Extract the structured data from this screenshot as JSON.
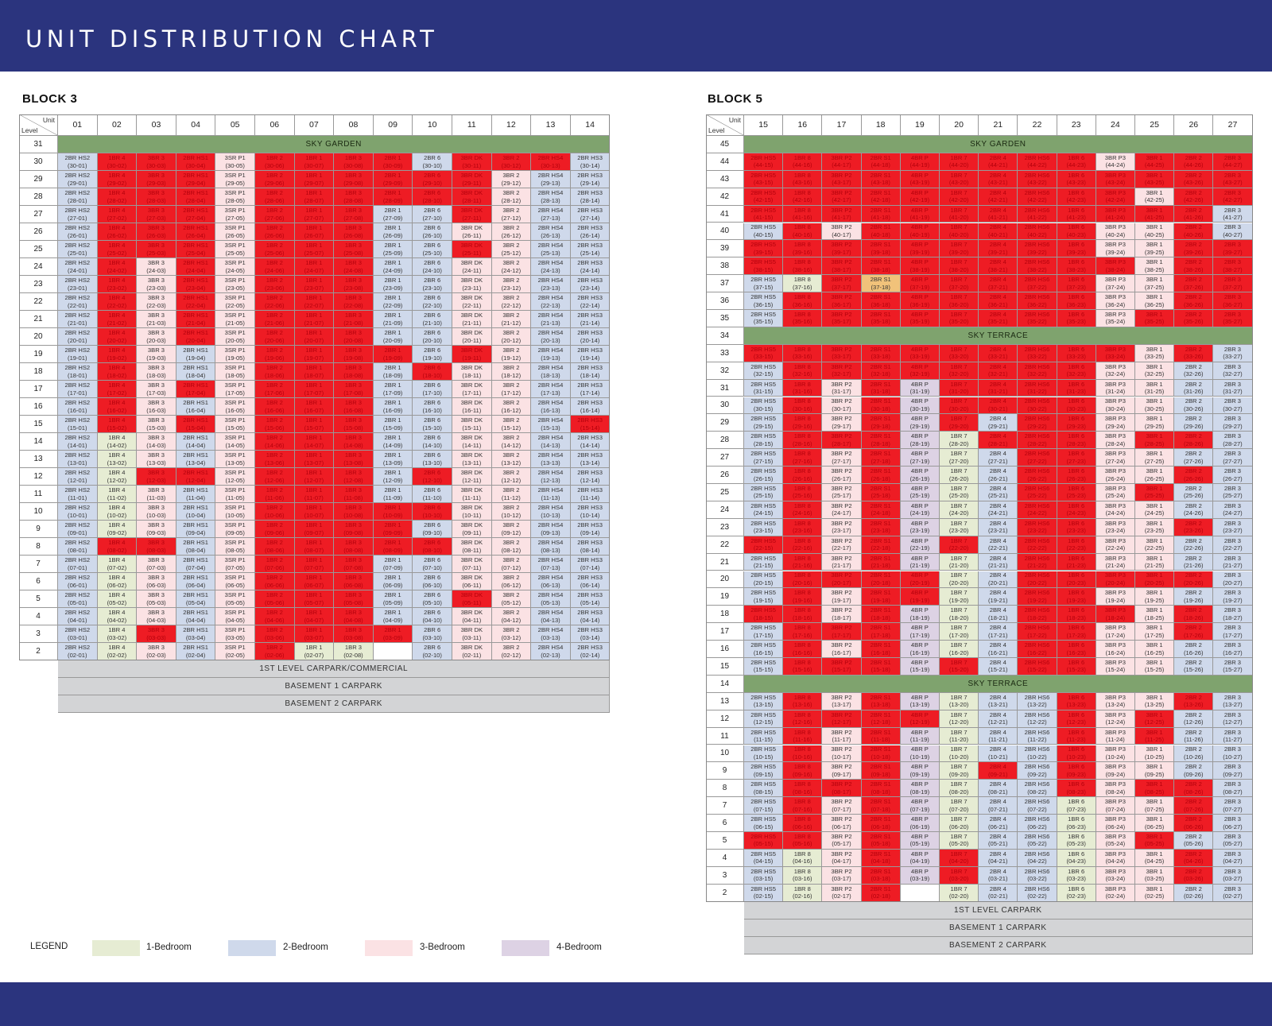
{
  "page": {
    "title": "UNIT DISTRIBUTION CHART"
  },
  "legend": {
    "title": "LEGEND",
    "items": [
      {
        "label": "1-Bedroom",
        "color": "#e6ecd3"
      },
      {
        "label": "2-Bedroom",
        "color": "#cfd9eb"
      },
      {
        "label": "3-Bedroom",
        "color": "#fbe2e4"
      },
      {
        "label": "4-Bedroom",
        "color": "#ddd2e4"
      }
    ]
  },
  "colors": {
    "header_bg": "#2b347e",
    "sold": "#ee1c24",
    "band_green": "#7fa36e",
    "band_gray": "#d3d4d6"
  },
  "block3": {
    "title": "BLOCK 3",
    "corner_unit": "Unit",
    "corner_level": "Level",
    "units": [
      "01",
      "02",
      "03",
      "04",
      "05",
      "06",
      "07",
      "08",
      "09",
      "10",
      "11",
      "12",
      "13",
      "14"
    ],
    "cols": [
      {
        "type": "2BR HS2",
        "cat": 2
      },
      {
        "type": "1BR 4",
        "cat": 1
      },
      {
        "type": "3BR 3",
        "cat": 3
      },
      {
        "type": "2BR HS1",
        "cat": 2
      },
      {
        "type": "3SR P1",
        "cat": 3
      },
      {
        "type": "1BR 2",
        "cat": 1
      },
      {
        "type": "1BR 1",
        "cat": 1
      },
      {
        "type": "1BR 3",
        "cat": 1
      },
      {
        "type": "2BR 1",
        "cat": 2
      },
      {
        "type": "2BR 6",
        "cat": 2
      },
      {
        "type": "3BR DK",
        "cat": 3
      },
      {
        "type": "3BR 2",
        "cat": 3
      },
      {
        "type": "2BR HS4",
        "cat": 2
      },
      {
        "type": "2BR HS3",
        "cat": 2
      }
    ],
    "top_band": {
      "level": "31",
      "label": "SKY GARDEN"
    },
    "levels": [
      {
        "lv": "30",
        "sold": [
          2,
          3,
          4,
          6,
          7,
          8,
          9,
          11,
          12,
          13
        ]
      },
      {
        "lv": "29",
        "sold": [
          2,
          3,
          4,
          6,
          7,
          8,
          9,
          10,
          11
        ]
      },
      {
        "lv": "28",
        "sold": [
          2,
          3,
          4,
          6,
          7,
          8,
          9,
          10,
          11
        ]
      },
      {
        "lv": "27",
        "sold": [
          2,
          3,
          4,
          6,
          7,
          8,
          11
        ]
      },
      {
        "lv": "26",
        "sold": [
          2,
          3,
          4,
          6,
          7,
          8
        ]
      },
      {
        "lv": "25",
        "sold": [
          2,
          3,
          4,
          6,
          7,
          8,
          11
        ]
      },
      {
        "lv": "24",
        "sold": [
          2,
          4,
          6,
          7,
          8
        ]
      },
      {
        "lv": "23",
        "sold": [
          2,
          4,
          6,
          7,
          8
        ]
      },
      {
        "lv": "22",
        "sold": [
          2,
          4,
          6,
          7,
          8
        ]
      },
      {
        "lv": "21",
        "sold": [
          2,
          4,
          6,
          7,
          8
        ]
      },
      {
        "lv": "20",
        "sold": [
          2,
          4,
          6,
          7,
          8
        ]
      },
      {
        "lv": "19",
        "sold": [
          2,
          6,
          7,
          8,
          9,
          11
        ]
      },
      {
        "lv": "18",
        "sold": [
          2,
          6,
          7,
          8,
          10
        ]
      },
      {
        "lv": "17",
        "sold": [
          2,
          4,
          6,
          7,
          8
        ]
      },
      {
        "lv": "16",
        "sold": [
          2,
          6,
          7,
          8
        ]
      },
      {
        "lv": "15",
        "sold": [
          2,
          4,
          6,
          7,
          8,
          14
        ]
      },
      {
        "lv": "14",
        "sold": [
          6,
          7,
          8
        ]
      },
      {
        "lv": "13",
        "sold": [
          6,
          7,
          8
        ]
      },
      {
        "lv": "12",
        "sold": [
          3,
          4,
          6,
          7,
          8,
          10
        ]
      },
      {
        "lv": "11",
        "sold": [
          6,
          7,
          8
        ]
      },
      {
        "lv": "10",
        "sold": [
          6,
          7,
          8,
          9,
          10
        ]
      },
      {
        "lv": "9",
        "sold": [
          6,
          7,
          8,
          9
        ]
      },
      {
        "lv": "8",
        "sold": [
          2,
          3,
          6,
          7,
          8,
          9,
          10
        ]
      },
      {
        "lv": "7",
        "sold": [
          6,
          7,
          8
        ]
      },
      {
        "lv": "6",
        "sold": [
          6,
          7,
          8
        ]
      },
      {
        "lv": "5",
        "sold": [
          6,
          7,
          8,
          11
        ]
      },
      {
        "lv": "4",
        "sold": [
          6,
          7,
          8
        ]
      },
      {
        "lv": "3",
        "sold": [
          3,
          6,
          7,
          8,
          9
        ]
      },
      {
        "lv": "2",
        "sold": [
          6
        ],
        "labels": {
          "7": "1BR 1",
          "8": "1BR 3"
        },
        "blank": [
          9
        ]
      }
    ],
    "bottom_bands": [
      "1ST LEVEL CARPARK/COMMERCIAL",
      "BASEMENT 1 CARPARK",
      "BASEMENT 2 CARPARK"
    ]
  },
  "block5": {
    "title": "BLOCK 5",
    "corner_unit": "Unit",
    "corner_level": "Level",
    "units": [
      "15",
      "16",
      "17",
      "18",
      "19",
      "20",
      "21",
      "22",
      "23",
      "24",
      "25",
      "26",
      "27"
    ],
    "cols": [
      {
        "type": "2BR HS5",
        "cat": 2
      },
      {
        "type": "1BR 8",
        "cat": 1
      },
      {
        "type": "3BR P2",
        "cat": 3
      },
      {
        "type": "2BR S1",
        "cat": 2
      },
      {
        "type": "4BR P",
        "cat": 4
      },
      {
        "type": "1BR 7",
        "cat": 1
      },
      {
        "type": "2BR 4",
        "cat": 2
      },
      {
        "type": "2BR HS6",
        "cat": 2
      },
      {
        "type": "1BR 6",
        "cat": 1
      },
      {
        "type": "3BR P3",
        "cat": 3
      },
      {
        "type": "3BR 1",
        "cat": 3
      },
      {
        "type": "2BR 2",
        "cat": 2
      },
      {
        "type": "2BR 3",
        "cat": 2
      }
    ],
    "top_band": {
      "level": "45",
      "label": "SKY GARDEN"
    },
    "mid_band_1": {
      "level": "34",
      "label": "SKY TERRACE"
    },
    "mid_band_2": {
      "level": "14",
      "label": "SKY TERRACE"
    },
    "upper_levels": [
      {
        "lv": "44",
        "sold": [
          1,
          2,
          3,
          4,
          5,
          6,
          7,
          8,
          9,
          11,
          12,
          13
        ]
      },
      {
        "lv": "43",
        "sold": [
          1,
          2,
          3,
          4,
          5,
          6,
          7,
          8,
          9,
          10,
          11,
          12,
          13
        ]
      },
      {
        "lv": "42",
        "sold": [
          1,
          2,
          3,
          4,
          5,
          6,
          7,
          8,
          9,
          10,
          12,
          13
        ]
      },
      {
        "lv": "41",
        "sold": [
          1,
          2,
          3,
          4,
          5,
          6,
          7,
          8,
          9,
          10,
          11,
          12
        ]
      },
      {
        "lv": "40",
        "sold": [
          2,
          4,
          5,
          6,
          7,
          8,
          9,
          12
        ]
      },
      {
        "lv": "39",
        "sold": [
          1,
          2,
          3,
          4,
          5,
          6,
          7,
          8,
          9,
          12,
          13
        ]
      },
      {
        "lv": "38",
        "sold": [
          1,
          2,
          3,
          4,
          5,
          6,
          7,
          8,
          9,
          10,
          12,
          13
        ]
      },
      {
        "lv": "37",
        "sold": [
          3,
          5,
          6,
          7,
          8,
          9,
          12,
          13
        ],
        "special": {
          "4": "t5"
        }
      },
      {
        "lv": "36",
        "sold": [
          2,
          3,
          4,
          5,
          6,
          7,
          8,
          9,
          12,
          13
        ]
      },
      {
        "lv": "35",
        "sold": [
          2,
          3,
          4,
          5,
          6,
          7,
          8,
          9,
          11,
          12,
          13
        ]
      }
    ],
    "middle_levels": [
      {
        "lv": "33",
        "sold": [
          1,
          2,
          3,
          4,
          5,
          6,
          7,
          8,
          9,
          10,
          12
        ]
      },
      {
        "lv": "32",
        "sold": [
          2,
          3,
          4,
          5,
          6,
          7,
          8,
          9
        ]
      },
      {
        "lv": "31",
        "sold": [
          2,
          4,
          6,
          7,
          8,
          9
        ]
      },
      {
        "lv": "30",
        "sold": [
          2,
          4,
          6,
          7,
          8,
          9
        ]
      },
      {
        "lv": "29",
        "sold": [
          2,
          4,
          6,
          8,
          9
        ]
      },
      {
        "lv": "28",
        "sold": [
          2,
          3,
          4,
          7,
          8,
          9,
          11,
          12
        ]
      },
      {
        "lv": "27",
        "sold": [
          2,
          4,
          8,
          9
        ]
      },
      {
        "lv": "26",
        "sold": [
          2,
          4,
          8,
          9,
          12
        ]
      },
      {
        "lv": "25",
        "sold": [
          2,
          4,
          8,
          9,
          11
        ]
      },
      {
        "lv": "24",
        "sold": [
          2,
          4,
          8,
          9
        ]
      },
      {
        "lv": "23",
        "sold": [
          2,
          4,
          8,
          9,
          12
        ]
      },
      {
        "lv": "22",
        "sold": [
          1,
          2,
          4,
          6,
          8,
          9
        ]
      },
      {
        "lv": "21",
        "sold": [
          2,
          4,
          8,
          9
        ]
      },
      {
        "lv": "20",
        "sold": [
          2,
          3,
          4,
          5,
          8,
          9,
          10,
          11,
          12
        ]
      },
      {
        "lv": "19",
        "sold": [
          2,
          4,
          5,
          8,
          9
        ]
      },
      {
        "lv": "18",
        "sold": [
          1,
          2,
          4,
          8,
          9,
          10,
          12
        ]
      },
      {
        "lv": "17",
        "sold": [
          2,
          3,
          4,
          8,
          9,
          12
        ]
      },
      {
        "lv": "16",
        "sold": [
          2,
          4,
          8,
          9
        ]
      },
      {
        "lv": "15",
        "sold": [
          2,
          3,
          4,
          6,
          8,
          9
        ]
      }
    ],
    "lower_levels": [
      {
        "lv": "13",
        "sold": [
          2,
          4,
          9,
          12
        ]
      },
      {
        "lv": "12",
        "sold": [
          2,
          3,
          4,
          5,
          9,
          11
        ]
      },
      {
        "lv": "11",
        "sold": [
          2,
          4,
          9,
          11
        ]
      },
      {
        "lv": "10",
        "sold": [
          2,
          4,
          9
        ]
      },
      {
        "lv": "9",
        "sold": [
          2,
          4,
          7,
          9
        ]
      },
      {
        "lv": "8",
        "sold": [
          2,
          3,
          4,
          9,
          11,
          12
        ]
      },
      {
        "lv": "7",
        "sold": [
          2,
          4,
          12
        ]
      },
      {
        "lv": "6",
        "sold": [
          2,
          4,
          12
        ]
      },
      {
        "lv": "5",
        "sold": [
          1,
          2,
          4,
          11
        ]
      },
      {
        "lv": "4",
        "sold": [
          4,
          6,
          12
        ]
      },
      {
        "lv": "3",
        "sold": [
          4,
          6,
          12
        ]
      },
      {
        "lv": "2",
        "sold": [
          4
        ],
        "blank": [
          5
        ]
      }
    ],
    "bottom_bands": [
      "1ST LEVEL CARPARK",
      "BASEMENT 1 CARPARK",
      "BASEMENT 2 CARPARK"
    ]
  }
}
